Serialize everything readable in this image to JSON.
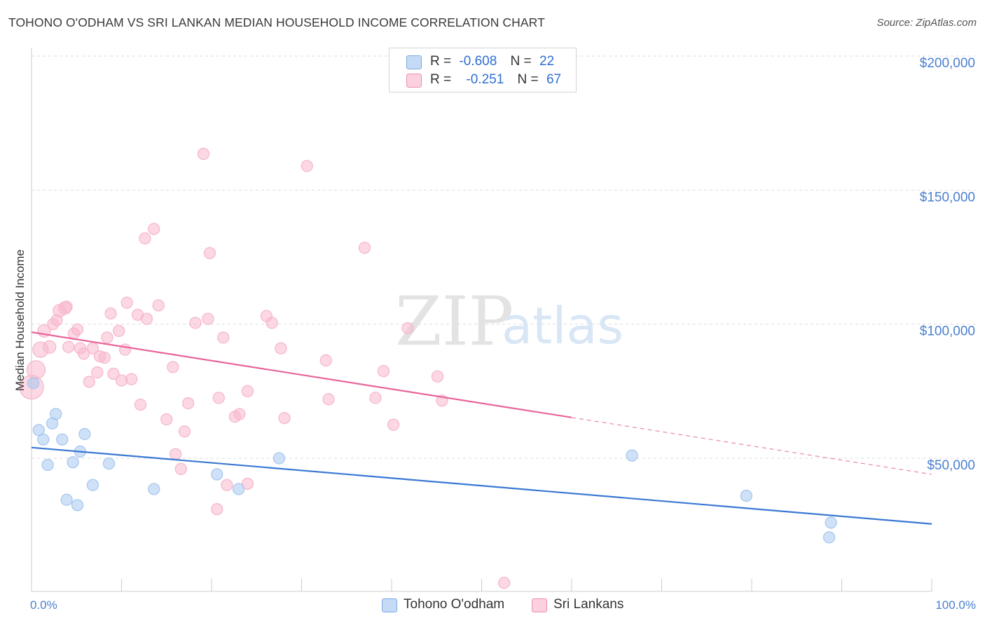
{
  "title": "TOHONO O'ODHAM VS SRI LANKAN MEDIAN HOUSEHOLD INCOME CORRELATION CHART",
  "source": "Source: ZipAtlas.com",
  "watermark": {
    "zip": "ZIP",
    "atlas": "atlas"
  },
  "legend": {
    "rows": [
      {
        "r_label": "R =",
        "r_value": "-0.608",
        "n_label": "N =",
        "n_value": "22",
        "color": "#a8c8f0"
      },
      {
        "r_label": "R =",
        "r_value": "-0.251",
        "n_label": "N =",
        "n_value": "67",
        "color": "#f7b8cc"
      }
    ]
  },
  "bottom_legend": [
    {
      "label": "Tohono O'odham",
      "color": "#a8c8f0"
    },
    {
      "label": "Sri Lankans",
      "color": "#f7b8cc"
    }
  ],
  "chart_data": {
    "type": "scatter",
    "title": "TOHONO O'ODHAM VS SRI LANKAN MEDIAN HOUSEHOLD INCOME CORRELATION CHART",
    "xlabel": "",
    "ylabel": "Median Household Income",
    "xlim": [
      0,
      100
    ],
    "ylim": [
      0,
      205000
    ],
    "x_tick_labels": [
      "0.0%",
      "100.0%"
    ],
    "y_ticks": [
      50000,
      100000,
      150000,
      200000
    ],
    "y_tick_labels": [
      "$50,000",
      "$100,000",
      "$150,000",
      "$200,000"
    ],
    "grid": true,
    "series": [
      {
        "name": "Tohono O'odham",
        "color": "#3a78d4",
        "fill": "#a8c8f0",
        "trend": {
          "x0": 0,
          "y0": 54000,
          "x1": 100,
          "y1": 25500,
          "dashed_from": null
        },
        "points": [
          {
            "x": 0.2,
            "y": 78000,
            "s": 8
          },
          {
            "x": 0.8,
            "y": 60500,
            "s": 8
          },
          {
            "x": 1.3,
            "y": 57000,
            "s": 8
          },
          {
            "x": 1.8,
            "y": 47500,
            "s": 8
          },
          {
            "x": 2.3,
            "y": 63000,
            "s": 8
          },
          {
            "x": 2.7,
            "y": 66500,
            "s": 8
          },
          {
            "x": 3.4,
            "y": 57000,
            "s": 8
          },
          {
            "x": 3.9,
            "y": 34500,
            "s": 8
          },
          {
            "x": 4.6,
            "y": 48500,
            "s": 8
          },
          {
            "x": 5.1,
            "y": 32500,
            "s": 8
          },
          {
            "x": 5.4,
            "y": 52500,
            "s": 8
          },
          {
            "x": 5.9,
            "y": 59000,
            "s": 8
          },
          {
            "x": 6.8,
            "y": 40000,
            "s": 8
          },
          {
            "x": 8.6,
            "y": 48000,
            "s": 8
          },
          {
            "x": 13.6,
            "y": 38500,
            "s": 8
          },
          {
            "x": 20.6,
            "y": 44000,
            "s": 8
          },
          {
            "x": 23.0,
            "y": 38500,
            "s": 8
          },
          {
            "x": 27.5,
            "y": 50000,
            "s": 8
          },
          {
            "x": 66.7,
            "y": 51000,
            "s": 8
          },
          {
            "x": 79.4,
            "y": 36000,
            "s": 8
          },
          {
            "x": 88.8,
            "y": 26000,
            "s": 8
          },
          {
            "x": 88.6,
            "y": 20500,
            "s": 8
          }
        ]
      },
      {
        "name": "Sri Lankans",
        "color": "#e8659a",
        "fill": "#f7b8cc",
        "trend": {
          "x0": 0,
          "y0": 97000,
          "x1": 100,
          "y1": 44000,
          "dashed_from": 60
        },
        "points": [
          {
            "x": 0.0,
            "y": 76500,
            "s": 17
          },
          {
            "x": 0.5,
            "y": 83000,
            "s": 13
          },
          {
            "x": 1.0,
            "y": 90500,
            "s": 11
          },
          {
            "x": 1.4,
            "y": 97500,
            "s": 9
          },
          {
            "x": 2.0,
            "y": 91500,
            "s": 9
          },
          {
            "x": 2.4,
            "y": 100000,
            "s": 8
          },
          {
            "x": 2.8,
            "y": 101500,
            "s": 8
          },
          {
            "x": 3.1,
            "y": 105000,
            "s": 9
          },
          {
            "x": 3.7,
            "y": 106000,
            "s": 9
          },
          {
            "x": 3.9,
            "y": 106500,
            "s": 8
          },
          {
            "x": 4.1,
            "y": 91500,
            "s": 8
          },
          {
            "x": 4.7,
            "y": 96500,
            "s": 8
          },
          {
            "x": 5.1,
            "y": 98000,
            "s": 8
          },
          {
            "x": 5.4,
            "y": 91000,
            "s": 8
          },
          {
            "x": 5.8,
            "y": 89000,
            "s": 8
          },
          {
            "x": 6.4,
            "y": 78500,
            "s": 8
          },
          {
            "x": 6.8,
            "y": 91000,
            "s": 8
          },
          {
            "x": 7.3,
            "y": 82000,
            "s": 8
          },
          {
            "x": 7.6,
            "y": 88000,
            "s": 8
          },
          {
            "x": 8.1,
            "y": 87500,
            "s": 8
          },
          {
            "x": 8.4,
            "y": 95000,
            "s": 8
          },
          {
            "x": 8.8,
            "y": 104000,
            "s": 8
          },
          {
            "x": 9.1,
            "y": 81500,
            "s": 8
          },
          {
            "x": 9.7,
            "y": 97500,
            "s": 8
          },
          {
            "x": 10.0,
            "y": 79000,
            "s": 8
          },
          {
            "x": 10.4,
            "y": 90500,
            "s": 8
          },
          {
            "x": 10.6,
            "y": 108000,
            "s": 8
          },
          {
            "x": 11.1,
            "y": 79500,
            "s": 8
          },
          {
            "x": 11.8,
            "y": 103500,
            "s": 8
          },
          {
            "x": 12.1,
            "y": 70000,
            "s": 8
          },
          {
            "x": 12.6,
            "y": 132000,
            "s": 8
          },
          {
            "x": 12.8,
            "y": 102000,
            "s": 8
          },
          {
            "x": 13.6,
            "y": 135500,
            "s": 8
          },
          {
            "x": 14.1,
            "y": 107000,
            "s": 8
          },
          {
            "x": 15.0,
            "y": 64500,
            "s": 8
          },
          {
            "x": 15.7,
            "y": 84000,
            "s": 8
          },
          {
            "x": 16.0,
            "y": 51500,
            "s": 8
          },
          {
            "x": 16.6,
            "y": 46000,
            "s": 8
          },
          {
            "x": 17.0,
            "y": 60000,
            "s": 8
          },
          {
            "x": 17.4,
            "y": 70500,
            "s": 8
          },
          {
            "x": 18.2,
            "y": 100500,
            "s": 8
          },
          {
            "x": 19.1,
            "y": 163500,
            "s": 8
          },
          {
            "x": 19.6,
            "y": 102000,
            "s": 8
          },
          {
            "x": 19.8,
            "y": 126500,
            "s": 8
          },
          {
            "x": 20.8,
            "y": 72500,
            "s": 8
          },
          {
            "x": 21.3,
            "y": 95000,
            "s": 8
          },
          {
            "x": 20.6,
            "y": 31000,
            "s": 8
          },
          {
            "x": 21.7,
            "y": 40000,
            "s": 8
          },
          {
            "x": 22.6,
            "y": 65500,
            "s": 8
          },
          {
            "x": 23.1,
            "y": 66500,
            "s": 8
          },
          {
            "x": 24.0,
            "y": 75000,
            "s": 8
          },
          {
            "x": 24.0,
            "y": 40500,
            "s": 8
          },
          {
            "x": 26.1,
            "y": 103000,
            "s": 8
          },
          {
            "x": 26.7,
            "y": 100500,
            "s": 8
          },
          {
            "x": 27.7,
            "y": 91000,
            "s": 8
          },
          {
            "x": 28.1,
            "y": 65000,
            "s": 8
          },
          {
            "x": 30.6,
            "y": 159000,
            "s": 8
          },
          {
            "x": 32.7,
            "y": 86500,
            "s": 8
          },
          {
            "x": 33.0,
            "y": 72000,
            "s": 8
          },
          {
            "x": 37.0,
            "y": 128500,
            "s": 8
          },
          {
            "x": 38.2,
            "y": 72500,
            "s": 8
          },
          {
            "x": 39.1,
            "y": 82500,
            "s": 8
          },
          {
            "x": 40.2,
            "y": 62500,
            "s": 8
          },
          {
            "x": 41.8,
            "y": 98500,
            "s": 8
          },
          {
            "x": 45.1,
            "y": 80500,
            "s": 8
          },
          {
            "x": 45.6,
            "y": 71500,
            "s": 8
          },
          {
            "x": 52.5,
            "y": 3500,
            "s": 8
          }
        ]
      }
    ]
  }
}
